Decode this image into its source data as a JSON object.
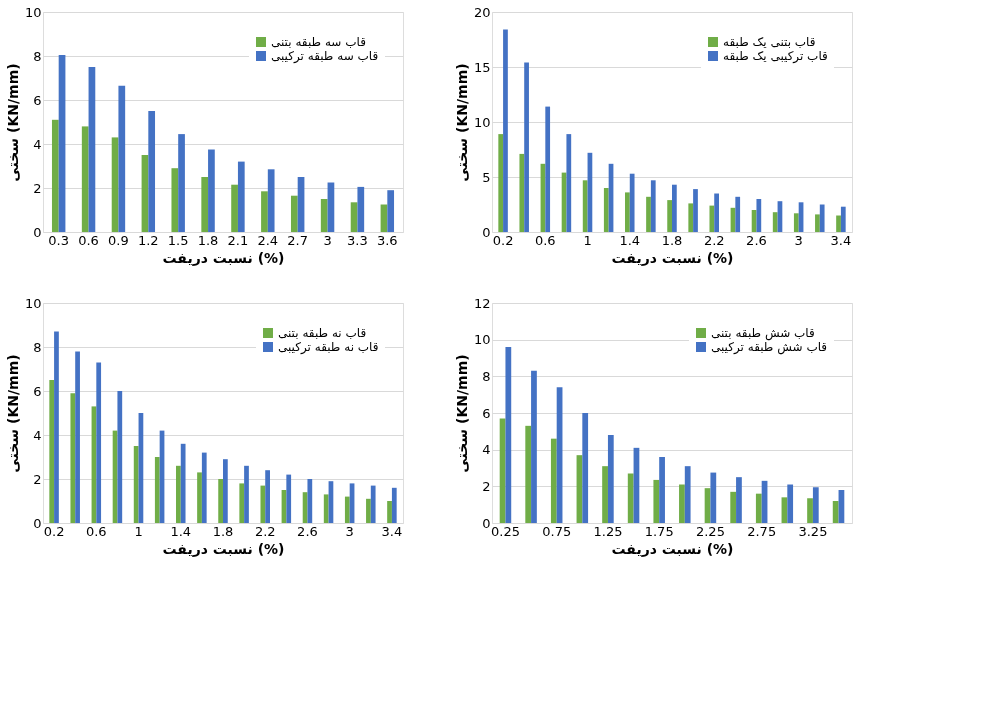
{
  "chart_data": [
    {
      "type": "bar",
      "xlabel": "نسبت دریفت (%)",
      "ylabel": "سختی (KN/mm)",
      "categories": [
        "0.3",
        "0.6",
        "0.9",
        "1.2",
        "1.5",
        "1.8",
        "2.1",
        "2.4",
        "2.7",
        "3",
        "3.3",
        "3.6"
      ],
      "series": [
        {
          "name": "قاب سه طبقه بتنی",
          "color": "#70ad47",
          "values": [
            5.1,
            4.8,
            4.3,
            3.5,
            2.9,
            2.5,
            2.15,
            1.85,
            1.65,
            1.5,
            1.35,
            1.25
          ]
        },
        {
          "name": "قاب سه طبقه ترکیبی",
          "color": "#4472c4",
          "values": [
            8.05,
            7.5,
            6.65,
            5.5,
            4.45,
            3.75,
            3.2,
            2.85,
            2.5,
            2.25,
            2.05,
            1.9
          ]
        }
      ],
      "ylim": [
        0,
        10
      ],
      "yticks": [
        0,
        2,
        4,
        6,
        8,
        10
      ],
      "grid": "y",
      "legend": "top right"
    },
    {
      "type": "bar",
      "xlabel": "نسبت دریفت (%)",
      "ylabel": "سختی (KN/mm)",
      "categories": [
        "0.2",
        null,
        "0.6",
        null,
        "1",
        null,
        "1.4",
        null,
        "1.8",
        null,
        "2.2",
        null,
        "2.6",
        null,
        "3",
        null,
        "3.4"
      ],
      "series": [
        {
          "name": "قاب بتنی یک طبقه",
          "color": "#70ad47",
          "values": [
            8.9,
            7.1,
            6.2,
            5.4,
            4.7,
            4.0,
            3.6,
            3.2,
            2.9,
            2.6,
            2.4,
            2.2,
            2.0,
            1.8,
            1.7,
            1.6,
            1.5
          ]
        },
        {
          "name": "قاب ترکیبی یک طبقه",
          "color": "#4472c4",
          "values": [
            18.4,
            15.4,
            11.4,
            8.9,
            7.2,
            6.2,
            5.3,
            4.7,
            4.3,
            3.9,
            3.5,
            3.2,
            3.0,
            2.8,
            2.7,
            2.5,
            2.3
          ]
        }
      ],
      "ylim": [
        0,
        20
      ],
      "yticks": [
        0,
        5,
        10,
        15,
        20
      ],
      "grid": "y",
      "legend": "top right"
    },
    {
      "type": "bar",
      "xlabel": "نسبت دریفت (%)",
      "ylabel": "سختی (KN/mm)",
      "categories": [
        "0.2",
        null,
        "0.6",
        null,
        "1",
        null,
        "1.4",
        null,
        "1.8",
        null,
        "2.2",
        null,
        "2.6",
        null,
        "3",
        null,
        "3.4"
      ],
      "series": [
        {
          "name": "قاب نه طبقه بتنی",
          "color": "#70ad47",
          "values": [
            6.5,
            5.9,
            5.3,
            4.2,
            3.5,
            3.0,
            2.6,
            2.3,
            2.0,
            1.8,
            1.7,
            1.5,
            1.4,
            1.3,
            1.2,
            1.1,
            1.0
          ]
        },
        {
          "name": "قاب نه طبقه ترکیبی",
          "color": "#4472c4",
          "values": [
            8.7,
            7.8,
            7.3,
            6.0,
            5.0,
            4.2,
            3.6,
            3.2,
            2.9,
            2.6,
            2.4,
            2.2,
            2.0,
            1.9,
            1.8,
            1.7,
            1.6
          ]
        }
      ],
      "ylim": [
        0,
        10
      ],
      "yticks": [
        0,
        2,
        4,
        6,
        8,
        10
      ],
      "grid": "y",
      "legend": "top right"
    },
    {
      "type": "bar",
      "xlabel": "نسبت دریفت (%)",
      "ylabel": "سختی (KN/mm)",
      "categories": [
        "0.25",
        null,
        "0.75",
        null,
        "1.25",
        null,
        "1.75",
        null,
        "2.25",
        null,
        "2.75",
        null,
        "3.25",
        null
      ],
      "series": [
        {
          "name": "قاب شش طبقه بتنی",
          "color": "#70ad47",
          "values": [
            5.7,
            5.3,
            4.6,
            3.7,
            3.1,
            2.7,
            2.35,
            2.1,
            1.9,
            1.7,
            1.6,
            1.4,
            1.35,
            1.2
          ]
        },
        {
          "name": "قاب شش طبقه ترکیبی",
          "color": "#4472c4",
          "values": [
            9.6,
            8.3,
            7.4,
            6.0,
            4.8,
            4.1,
            3.6,
            3.1,
            2.75,
            2.5,
            2.3,
            2.1,
            1.95,
            1.8
          ]
        }
      ],
      "ylim": [
        0,
        12
      ],
      "yticks": [
        0,
        2,
        4,
        6,
        8,
        10,
        12
      ],
      "grid": "y",
      "legend": "top right"
    }
  ]
}
